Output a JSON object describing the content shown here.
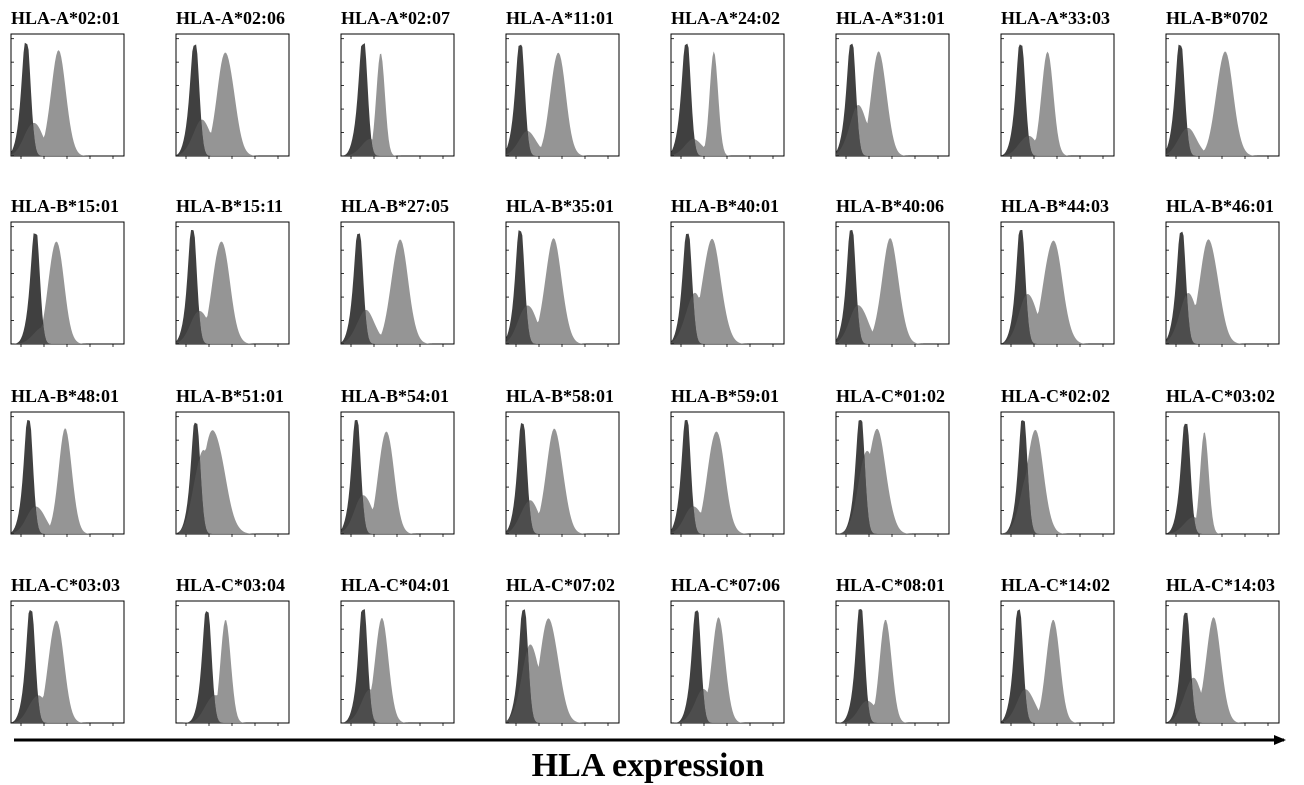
{
  "chart_data": {
    "type": "area",
    "description_kind": "flow cytometry histogram grid",
    "rows": 4,
    "cols": 8,
    "xlabel": "HLA expression",
    "ylabel": "",
    "colors": {
      "control": "#2b2b2b",
      "sample": "#8f8f8f",
      "frame": "#000000"
    },
    "panels": [
      {
        "title": "HLA-A*02:01",
        "control_peak": 0.14,
        "sample_peak": 0.42,
        "sample_width": 0.09,
        "shoulder": 0.3
      },
      {
        "title": "HLA-A*02:06",
        "control_peak": 0.17,
        "sample_peak": 0.44,
        "sample_width": 0.1,
        "shoulder": 0.32
      },
      {
        "title": "HLA-A*02:07",
        "control_peak": 0.2,
        "sample_peak": 0.35,
        "sample_width": 0.05,
        "shoulder": 0.15
      },
      {
        "title": "HLA-A*11:01",
        "control_peak": 0.13,
        "sample_peak": 0.46,
        "sample_width": 0.09,
        "shoulder": 0.22
      },
      {
        "title": "HLA-A*24:02",
        "control_peak": 0.14,
        "sample_peak": 0.38,
        "sample_width": 0.05,
        "shoulder": 0.15
      },
      {
        "title": "HLA-A*31:01",
        "control_peak": 0.14,
        "sample_peak": 0.38,
        "sample_width": 0.09,
        "shoulder": 0.45
      },
      {
        "title": "HLA-A*33:03",
        "control_peak": 0.18,
        "sample_peak": 0.41,
        "sample_width": 0.07,
        "shoulder": 0.18
      },
      {
        "title": "HLA-B*0702",
        "control_peak": 0.13,
        "sample_peak": 0.52,
        "sample_width": 0.1,
        "shoulder": 0.25
      },
      {
        "title": "HLA-B*15:01",
        "control_peak": 0.22,
        "sample_peak": 0.4,
        "sample_width": 0.09,
        "shoulder": 0.15
      },
      {
        "title": "HLA-B*15:11",
        "control_peak": 0.15,
        "sample_peak": 0.4,
        "sample_width": 0.1,
        "shoulder": 0.3
      },
      {
        "title": "HLA-B*27:05",
        "control_peak": 0.16,
        "sample_peak": 0.52,
        "sample_width": 0.1,
        "shoulder": 0.3
      },
      {
        "title": "HLA-B*35:01",
        "control_peak": 0.13,
        "sample_peak": 0.42,
        "sample_width": 0.1,
        "shoulder": 0.35
      },
      {
        "title": "HLA-B*40:01",
        "control_peak": 0.15,
        "sample_peak": 0.36,
        "sample_width": 0.11,
        "shoulder": 0.45
      },
      {
        "title": "HLA-B*40:06",
        "control_peak": 0.14,
        "sample_peak": 0.48,
        "sample_width": 0.1,
        "shoulder": 0.35
      },
      {
        "title": "HLA-B*44:03",
        "control_peak": 0.18,
        "sample_peak": 0.46,
        "sample_width": 0.11,
        "shoulder": 0.45
      },
      {
        "title": "HLA-B*46:01",
        "control_peak": 0.14,
        "sample_peak": 0.38,
        "sample_width": 0.11,
        "shoulder": 0.45
      },
      {
        "title": "HLA-B*48:01",
        "control_peak": 0.16,
        "sample_peak": 0.48,
        "sample_width": 0.08,
        "shoulder": 0.25
      },
      {
        "title": "HLA-B*51:01",
        "control_peak": 0.18,
        "sample_peak": 0.33,
        "sample_width": 0.13,
        "shoulder": 0.75
      },
      {
        "title": "HLA-B*54:01",
        "control_peak": 0.14,
        "sample_peak": 0.4,
        "sample_width": 0.09,
        "shoulder": 0.35
      },
      {
        "title": "HLA-B*58:01",
        "control_peak": 0.15,
        "sample_peak": 0.43,
        "sample_width": 0.1,
        "shoulder": 0.3
      },
      {
        "title": "HLA-B*59:01",
        "control_peak": 0.14,
        "sample_peak": 0.4,
        "sample_width": 0.1,
        "shoulder": 0.25
      },
      {
        "title": "HLA-C*01:02",
        "control_peak": 0.22,
        "sample_peak": 0.36,
        "sample_width": 0.11,
        "shoulder": 0.75
      },
      {
        "title": "HLA-C*02:02",
        "control_peak": 0.2,
        "sample_peak": 0.3,
        "sample_width": 0.1,
        "shoulder": 0.6
      },
      {
        "title": "HLA-C*03:02",
        "control_peak": 0.18,
        "sample_peak": 0.34,
        "sample_width": 0.05,
        "shoulder": 0.15
      },
      {
        "title": "HLA-C*03:03",
        "control_peak": 0.18,
        "sample_peak": 0.4,
        "sample_width": 0.09,
        "shoulder": 0.25
      },
      {
        "title": "HLA-C*03:04",
        "control_peak": 0.28,
        "sample_peak": 0.44,
        "sample_width": 0.06,
        "shoulder": 0.25
      },
      {
        "title": "HLA-C*04:01",
        "control_peak": 0.2,
        "sample_peak": 0.36,
        "sample_width": 0.08,
        "shoulder": 0.3
      },
      {
        "title": "HLA-C*07:02",
        "control_peak": 0.16,
        "sample_peak": 0.38,
        "sample_width": 0.11,
        "shoulder": 0.7
      },
      {
        "title": "HLA-C*07:06",
        "control_peak": 0.23,
        "sample_peak": 0.42,
        "sample_width": 0.08,
        "shoulder": 0.3
      },
      {
        "title": "HLA-C*08:01",
        "control_peak": 0.22,
        "sample_peak": 0.44,
        "sample_width": 0.07,
        "shoulder": 0.2
      },
      {
        "title": "HLA-C*14:02",
        "control_peak": 0.16,
        "sample_peak": 0.46,
        "sample_width": 0.08,
        "shoulder": 0.3
      },
      {
        "title": "HLA-C*14:03",
        "control_peak": 0.18,
        "sample_peak": 0.42,
        "sample_width": 0.09,
        "shoulder": 0.4
      }
    ]
  }
}
